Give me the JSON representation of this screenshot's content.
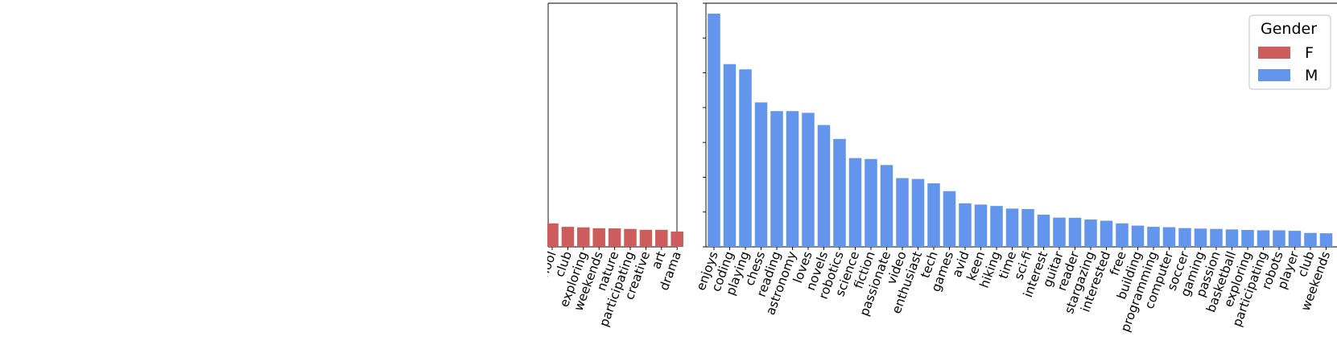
{
  "chart_data": [
    {
      "type": "bar",
      "panel": "left",
      "categories": [
        "school",
        "club",
        "exploring",
        "weekends",
        "nature",
        "participating",
        "creative",
        "art",
        "drama"
      ],
      "series": [
        {
          "name": "F",
          "values": [
            1.35,
            1.15,
            1.12,
            1.07,
            1.06,
            1.03,
            0.98,
            0.98,
            0.88
          ]
        }
      ],
      "ylim": [
        0,
        14
      ]
    },
    {
      "type": "bar",
      "panel": "right",
      "categories": [
        "enjoys",
        "coding",
        "playing",
        "chess",
        "reading",
        "astronomy",
        "loves",
        "novels",
        "robotics",
        "science",
        "fiction",
        "passionate",
        "video",
        "enthusiast",
        "tech",
        "games",
        "avid",
        "keen",
        "hiking",
        "time",
        "sci-fi",
        "interest",
        "guitar",
        "reader",
        "stargazing",
        "interested",
        "free",
        "building",
        "programming",
        "computer",
        "soccer",
        "gaming",
        "passion",
        "basketball",
        "exploring",
        "participating",
        "robots",
        "player",
        "club",
        "weekends"
      ],
      "series": [
        {
          "name": "M",
          "values": [
            13.4,
            10.5,
            10.2,
            8.3,
            7.8,
            7.8,
            7.7,
            7.0,
            6.2,
            5.1,
            5.05,
            4.7,
            3.95,
            3.9,
            3.65,
            3.2,
            2.5,
            2.43,
            2.35,
            2.2,
            2.17,
            1.85,
            1.68,
            1.67,
            1.57,
            1.5,
            1.35,
            1.22,
            1.15,
            1.13,
            1.08,
            1.05,
            1.03,
            1.0,
            0.97,
            0.95,
            0.95,
            0.92,
            0.8,
            0.78
          ]
        }
      ],
      "ylim": [
        0,
        14
      ]
    }
  ],
  "legend": {
    "title": "Gender",
    "items": [
      {
        "label": "F",
        "color": "#cd5c5c"
      },
      {
        "label": "M",
        "color": "#6495ed"
      }
    ]
  },
  "colors": {
    "F": "#cd5c5c",
    "M": "#6495ed"
  }
}
